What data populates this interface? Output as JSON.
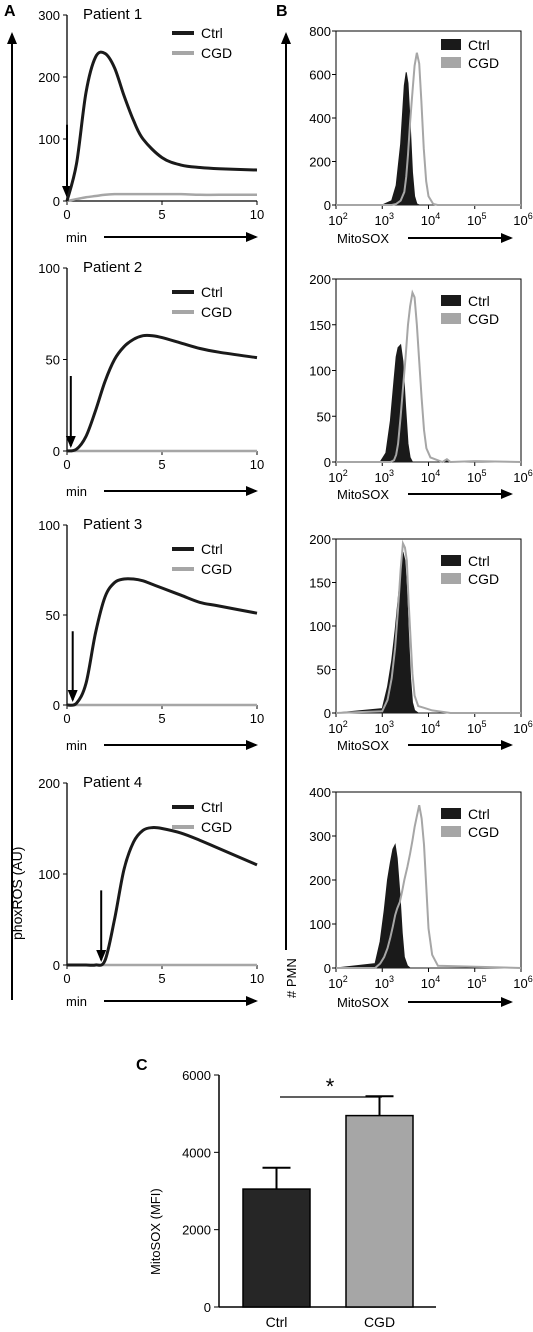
{
  "panel_labels": {
    "a": "A",
    "b": "B",
    "c": "C"
  },
  "panel_a": {
    "ylabel": "phoxROS  (AU)",
    "xlabel": "min"
  },
  "panel_b": {
    "ylabel": "# PMN",
    "xlabel": "MitoSOX"
  },
  "colors": {
    "ctrl": "#1a1a1a",
    "cgd": "#a6a6a6",
    "ctrl_bar": "#262626",
    "cgd_bar": "#a6a6a6"
  },
  "chart_data": [
    {
      "type": "line",
      "panel": "A",
      "title": "Patient 1",
      "x": [
        0,
        0.5,
        1,
        1.5,
        2,
        2.5,
        3,
        3.5,
        4,
        5,
        6,
        7,
        8,
        10
      ],
      "xlim": [
        0,
        10
      ],
      "ylim": [
        0,
        300
      ],
      "xticks": [
        "0",
        "5",
        "10"
      ],
      "yticks": [
        "0",
        "100",
        "200",
        "300"
      ],
      "stimulus_arrow_x": 0,
      "series": [
        {
          "name": "Ctrl",
          "values": [
            0,
            60,
            175,
            232,
            238,
            215,
            170,
            130,
            100,
            70,
            58,
            54,
            52,
            50
          ]
        },
        {
          "name": "CGD",
          "values": [
            0,
            3,
            6,
            8,
            10,
            11,
            11,
            11,
            11,
            11,
            11,
            10,
            10,
            10
          ]
        }
      ]
    },
    {
      "type": "line",
      "panel": "A",
      "title": "Patient 2",
      "x": [
        0,
        0.5,
        1,
        1.5,
        2,
        2.5,
        3,
        3.5,
        4,
        4.5,
        5,
        6,
        7,
        8,
        10
      ],
      "xlim": [
        0,
        10
      ],
      "ylim": [
        0,
        100
      ],
      "xticks": [
        "0",
        "5",
        "10"
      ],
      "yticks": [
        "0",
        "50",
        "100"
      ],
      "stimulus_arrow_x": 0.2,
      "series": [
        {
          "name": "Ctrl",
          "values": [
            0,
            1,
            8,
            22,
            38,
            50,
            57,
            61,
            63,
            63,
            62,
            59,
            56,
            54,
            51
          ]
        },
        {
          "name": "CGD",
          "values": [
            0,
            0,
            0,
            0,
            0,
            0,
            0,
            0,
            0,
            0,
            0,
            0,
            0,
            0,
            0
          ]
        }
      ]
    },
    {
      "type": "line",
      "panel": "A",
      "title": "Patient 3",
      "x": [
        0,
        0.5,
        1,
        1.5,
        2,
        2.5,
        3,
        3.5,
        4,
        4.5,
        5,
        6,
        7,
        8,
        10
      ],
      "xlim": [
        0,
        10
      ],
      "ylim": [
        0,
        100
      ],
      "xticks": [
        "0",
        "5",
        "10"
      ],
      "yticks": [
        "0",
        "50",
        "100"
      ],
      "stimulus_arrow_x": 0.3,
      "series": [
        {
          "name": "Ctrl",
          "values": [
            0,
            1,
            12,
            40,
            60,
            68,
            70,
            70,
            69,
            67,
            65,
            61,
            57,
            55,
            51
          ]
        },
        {
          "name": "CGD",
          "values": [
            0,
            0,
            0,
            0,
            0,
            0,
            0,
            0,
            0,
            0,
            0,
            0,
            0,
            0,
            0
          ]
        }
      ]
    },
    {
      "type": "line",
      "panel": "A",
      "title": "Patient 4",
      "x": [
        0,
        1,
        1.5,
        2,
        2.5,
        3,
        3.5,
        4,
        4.5,
        5,
        6,
        7,
        8,
        10
      ],
      "xlim": [
        0,
        10
      ],
      "ylim": [
        0,
        200
      ],
      "xticks": [
        "0",
        "5",
        "10"
      ],
      "yticks": [
        "0",
        "100",
        "200"
      ],
      "stimulus_arrow_x": 1.8,
      "series": [
        {
          "name": "Ctrl",
          "values": [
            0,
            0,
            0,
            5,
            50,
            105,
            135,
            148,
            151,
            150,
            145,
            137,
            128,
            110
          ]
        },
        {
          "name": "CGD",
          "values": [
            0,
            0,
            0,
            0,
            0,
            0,
            0,
            0,
            0,
            0,
            0,
            0,
            0,
            0
          ]
        }
      ]
    },
    {
      "type": "area",
      "panel": "B",
      "x_scale": "log",
      "x": [
        100,
        1000,
        1600,
        2000,
        2500,
        3000,
        3300,
        3600,
        4000,
        4500,
        5000,
        5600,
        6300,
        7000,
        7900,
        8900,
        10000,
        12600,
        15800,
        1000000
      ],
      "xlim": [
        100,
        1000000
      ],
      "ylim": [
        0,
        800
      ],
      "xticks": [
        "10^2",
        "10^3",
        "10^4",
        "10^5",
        "10^6"
      ],
      "yticks": [
        "0",
        "200",
        "400",
        "600",
        "800"
      ],
      "series": [
        {
          "name": "Ctrl",
          "values": [
            0,
            0,
            20,
            90,
            280,
            550,
            610,
            560,
            380,
            150,
            40,
            5,
            0,
            0,
            0,
            0,
            0,
            0,
            0,
            0
          ]
        },
        {
          "name": "CGD",
          "values": [
            0,
            0,
            0,
            5,
            20,
            60,
            130,
            230,
            380,
            520,
            640,
            700,
            650,
            480,
            260,
            110,
            40,
            5,
            0,
            0
          ]
        }
      ]
    },
    {
      "type": "area",
      "panel": "B",
      "x_scale": "log",
      "x": [
        100,
        900,
        1200,
        1500,
        1800,
        2000,
        2200,
        2500,
        2800,
        3200,
        3600,
        4000,
        4500,
        5000,
        5600,
        6300,
        7100,
        8000,
        9000,
        11000,
        20000,
        25000,
        30000,
        100000,
        1000000
      ],
      "xlim": [
        100,
        1000000
      ],
      "ylim": [
        0,
        200
      ],
      "xticks": [
        "10^2",
        "10^3",
        "10^4",
        "10^5",
        "10^6"
      ],
      "yticks": [
        "0",
        "50",
        "100",
        "150",
        "200"
      ],
      "series": [
        {
          "name": "Ctrl",
          "values": [
            0,
            0,
            10,
            45,
            90,
            115,
            125,
            128,
            110,
            60,
            20,
            5,
            0,
            0,
            0,
            0,
            0,
            0,
            0,
            0,
            0,
            3,
            0,
            1,
            0
          ]
        },
        {
          "name": "CGD",
          "values": [
            0,
            0,
            0,
            0,
            2,
            8,
            20,
            50,
            80,
            115,
            150,
            170,
            185,
            180,
            150,
            110,
            70,
            35,
            15,
            5,
            0,
            3,
            0,
            1,
            0
          ]
        }
      ]
    },
    {
      "type": "area",
      "panel": "B",
      "x_scale": "log",
      "x": [
        100,
        1000,
        1300,
        1600,
        1900,
        2200,
        2500,
        2800,
        3100,
        3400,
        3700,
        4100,
        4500,
        5000,
        6000,
        8000,
        12000,
        30000,
        1000000
      ],
      "xlim": [
        100,
        1000000
      ],
      "ylim": [
        0,
        200
      ],
      "xticks": [
        "10^2",
        "10^3",
        "10^4",
        "10^5",
        "10^6"
      ],
      "yticks": [
        "0",
        "50",
        "100",
        "150",
        "200"
      ],
      "series": [
        {
          "name": "Ctrl",
          "values": [
            0,
            5,
            30,
            60,
            95,
            130,
            160,
            185,
            175,
            140,
            90,
            40,
            12,
            3,
            0,
            0,
            0,
            0,
            0
          ]
        },
        {
          "name": "CGD",
          "values": [
            0,
            2,
            15,
            40,
            75,
            120,
            165,
            195,
            190,
            175,
            130,
            85,
            45,
            20,
            8,
            6,
            3,
            0,
            0
          ]
        }
      ]
    },
    {
      "type": "area",
      "panel": "B",
      "x_scale": "log",
      "x": [
        100,
        700,
        900,
        1100,
        1300,
        1500,
        1700,
        1900,
        2100,
        2400,
        2700,
        3000,
        3500,
        4000,
        4500,
        5000,
        5600,
        6300,
        7100,
        8000,
        9000,
        10000,
        12000,
        16000,
        1000000
      ],
      "xlim": [
        100,
        1000000
      ],
      "ylim": [
        0,
        400
      ],
      "xticks": [
        "10^2",
        "10^3",
        "10^4",
        "10^5",
        "10^6"
      ],
      "yticks": [
        "0",
        "100",
        "200",
        "300",
        "400"
      ],
      "series": [
        {
          "name": "Ctrl",
          "values": [
            0,
            10,
            60,
            130,
            200,
            240,
            270,
            280,
            250,
            170,
            80,
            25,
            5,
            0,
            0,
            0,
            0,
            0,
            0,
            0,
            0,
            0,
            0,
            0,
            0
          ]
        },
        {
          "name": "CGD",
          "values": [
            0,
            0,
            10,
            25,
            45,
            70,
            95,
            120,
            135,
            150,
            175,
            200,
            230,
            260,
            290,
            320,
            345,
            370,
            340,
            280,
            180,
            90,
            30,
            5,
            0
          ]
        }
      ]
    },
    {
      "type": "bar",
      "panel": "C",
      "categories": [
        "Ctrl",
        "CGD"
      ],
      "values": [
        3050,
        4950
      ],
      "errors": [
        550,
        500
      ],
      "ylabel": "MitoSOX (MFI)",
      "ylim": [
        0,
        6000
      ],
      "yticks": [
        "0",
        "2000",
        "4000",
        "6000"
      ],
      "significance": "*"
    }
  ]
}
